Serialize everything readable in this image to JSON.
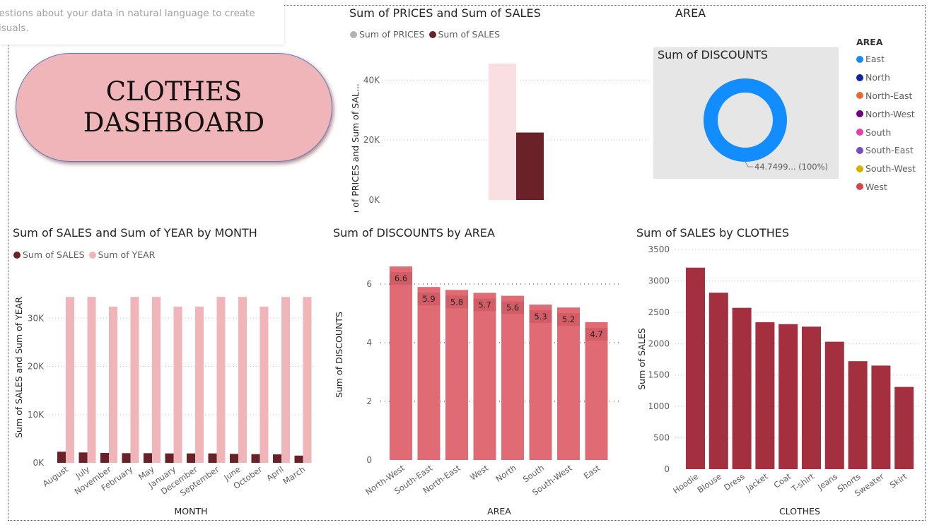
{
  "qa_hint": {
    "line1": "uestions about your data in natural language to create",
    "line2": "visuals."
  },
  "dashboard_title": {
    "line1": "CLOTHES",
    "line2": "DASHBOARD"
  },
  "prices_sales": {
    "title": "Sum of PRICES and Sum of SALES",
    "legend": [
      "Sum of PRICES",
      "Sum of SALES"
    ],
    "colors": [
      "#f9dfe1",
      "#6b2128"
    ],
    "legend_colors": [
      "#b3b3b3",
      "#6b2128"
    ],
    "y_label": "Sum of PRICES and Sum of SAL...",
    "y_ticks": [
      "0K",
      "20K",
      "40K"
    ],
    "chart_data": {
      "type": "bar",
      "categories": [
        ""
      ],
      "series": [
        {
          "name": "Sum of PRICES",
          "values": [
            45500
          ]
        },
        {
          "name": "Sum of SALES",
          "values": [
            22500
          ]
        }
      ],
      "ylim": [
        0,
        45500
      ]
    }
  },
  "area_panel": {
    "title": "AREA",
    "donut_title": "Sum of DISCOUNTS",
    "donut_label": "44.7499... (100%)",
    "donut_color": "#118dff",
    "legend_title": "AREA",
    "legend": [
      {
        "name": "East",
        "color": "#118dff"
      },
      {
        "name": "North",
        "color": "#12239e"
      },
      {
        "name": "North-East",
        "color": "#e66c37"
      },
      {
        "name": "North-West",
        "color": "#6b007b"
      },
      {
        "name": "South",
        "color": "#e044a7"
      },
      {
        "name": "South-East",
        "color": "#744ec2"
      },
      {
        "name": "South-West",
        "color": "#d9b300"
      },
      {
        "name": "West",
        "color": "#d64550"
      }
    ]
  },
  "sales_year_month": {
    "title": "Sum of SALES and Sum of YEAR by MONTH",
    "legend": [
      "Sum of SALES",
      "Sum of YEAR"
    ],
    "colors": [
      "#6b2128",
      "#f0b5b8"
    ],
    "y_label": "Sum of SALES and Sum of YEAR",
    "x_label": "MONTH",
    "y_ticks": [
      "0K",
      "10K",
      "20K",
      "30K"
    ],
    "chart_data": {
      "type": "bar",
      "categories": [
        "August",
        "July",
        "November",
        "February",
        "May",
        "January",
        "December",
        "September",
        "June",
        "October",
        "April",
        "March"
      ],
      "series": [
        {
          "name": "Sum of SALES",
          "values": [
            2300,
            2150,
            2050,
            2000,
            2000,
            1950,
            1950,
            1950,
            1850,
            1800,
            1750,
            1500
          ]
        },
        {
          "name": "Sum of YEAR",
          "values": [
            34400,
            34400,
            32400,
            34400,
            34400,
            32400,
            32400,
            34400,
            34400,
            32400,
            34400,
            34400
          ]
        }
      ],
      "ylim": [
        0,
        40000
      ]
    }
  },
  "discounts_area": {
    "title": "Sum of DISCOUNTS by AREA",
    "y_label": "Sum of DISCOUNTS",
    "x_label": "AREA",
    "color": "#e06b74",
    "y_ticks": [
      "0",
      "2",
      "4",
      "6"
    ],
    "chart_data": {
      "type": "bar",
      "categories": [
        "North-West",
        "South-East",
        "North-East",
        "West",
        "North",
        "South",
        "South-West",
        "East"
      ],
      "values": [
        6.6,
        5.9,
        5.8,
        5.7,
        5.6,
        5.3,
        5.2,
        4.7
      ],
      "data_labels": [
        "6.6",
        "5.9",
        "5.8",
        "5.7",
        "5.6",
        "5.3",
        "5.2",
        "4.7"
      ],
      "ylim": [
        0,
        6.6
      ]
    }
  },
  "sales_clothes": {
    "title": "Sum of SALES by CLOTHES",
    "y_label": "Sum of SALES",
    "x_label": "CLOTHES",
    "color": "#a4303f",
    "y_ticks": [
      "0",
      "500",
      "1000",
      "1500",
      "2000",
      "2500",
      "3000",
      "3500"
    ],
    "chart_data": {
      "type": "bar",
      "categories": [
        "Hoodie",
        "Blouse",
        "Dress",
        "Jacket",
        "Coat",
        "T-shirt",
        "Jeans",
        "Shorts",
        "Sweater",
        "Skirt"
      ],
      "values": [
        3210,
        2810,
        2570,
        2340,
        2310,
        2270,
        2030,
        1720,
        1650,
        1310
      ],
      "ylim": [
        0,
        3500
      ]
    }
  }
}
